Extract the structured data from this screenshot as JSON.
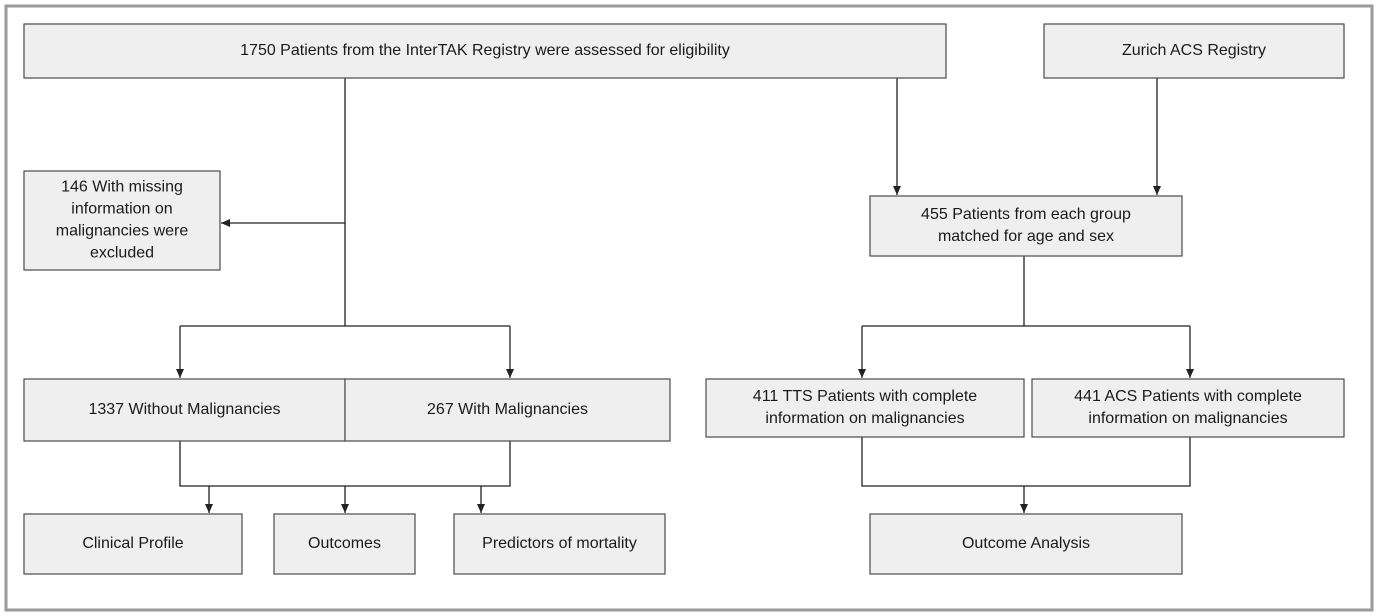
{
  "nodes": [
    {
      "lines": [
        "1750 Patients from the InterTAK Registry were assessed for eligibility"
      ]
    },
    {
      "lines": [
        "Zurich ACS Registry"
      ]
    },
    {
      "lines": [
        "146 With missing",
        "information on",
        "malignancies were",
        "excluded"
      ]
    },
    {
      "lines": [
        "455 Patients from each group",
        "matched for age and sex"
      ]
    },
    {
      "lines": [
        "1337 Without Malignancies"
      ]
    },
    {
      "lines": [
        "267 With Malignancies"
      ]
    },
    {
      "lines": [
        "411 TTS Patients with complete",
        "information on malignancies"
      ]
    },
    {
      "lines": [
        "441 ACS Patients with complete",
        "information on malignancies"
      ]
    },
    {
      "lines": [
        "Clinical Profile"
      ]
    },
    {
      "lines": [
        "Outcomes"
      ]
    },
    {
      "lines": [
        "Predictors of mortality"
      ]
    },
    {
      "lines": [
        "Outcome Analysis"
      ]
    }
  ]
}
